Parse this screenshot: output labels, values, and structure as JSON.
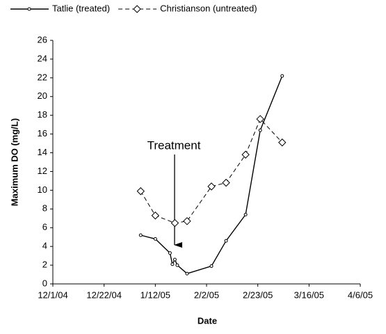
{
  "chart_data": {
    "type": "line",
    "x_label": "Date",
    "y_label": "Maximum DO (mg/L)",
    "annotation": "Treatment",
    "xlim": [
      "2004-12-01",
      "2005-04-06"
    ],
    "xticks": [
      {
        "value": "2004-12-01",
        "label": "12/1/04"
      },
      {
        "value": "2004-12-22",
        "label": "12/22/04"
      },
      {
        "value": "2005-01-12",
        "label": "1/12/05"
      },
      {
        "value": "2005-02-02",
        "label": "2/2/05"
      },
      {
        "value": "2005-02-23",
        "label": "2/23/05"
      },
      {
        "value": "2005-03-16",
        "label": "3/16/05"
      },
      {
        "value": "2005-04-06",
        "label": "4/6/05"
      }
    ],
    "ylim": [
      0,
      26
    ],
    "yticks": [
      0,
      2,
      4,
      6,
      8,
      10,
      12,
      14,
      16,
      18,
      20,
      22,
      24,
      26
    ],
    "grid": false,
    "legend": "top",
    "series": [
      {
        "name": "Tatlie (treated)",
        "color": "#000000",
        "marker": "circle",
        "dashed": false,
        "x": [
          "2005-01-06",
          "2005-01-12",
          "2005-01-18",
          "2005-01-19",
          "2005-01-20",
          "2005-01-21",
          "2005-01-25",
          "2005-02-04",
          "2005-02-10",
          "2005-02-18",
          "2005-02-24",
          "2005-03-05"
        ],
        "values": [
          5.2,
          4.8,
          3.3,
          2.1,
          2.6,
          2.0,
          1.1,
          1.9,
          4.6,
          7.4,
          16.4,
          22.2
        ]
      },
      {
        "name": "Christianson (untreated)",
        "color": "#000000",
        "marker": "diamond",
        "dashed": true,
        "x": [
          "2005-01-06",
          "2005-01-12",
          "2005-01-20",
          "2005-01-25",
          "2005-02-04",
          "2005-02-10",
          "2005-02-18",
          "2005-02-24",
          "2005-03-05"
        ],
        "values": [
          9.9,
          7.3,
          6.5,
          6.7,
          10.4,
          10.8,
          13.8,
          17.6,
          15.1
        ]
      }
    ]
  }
}
